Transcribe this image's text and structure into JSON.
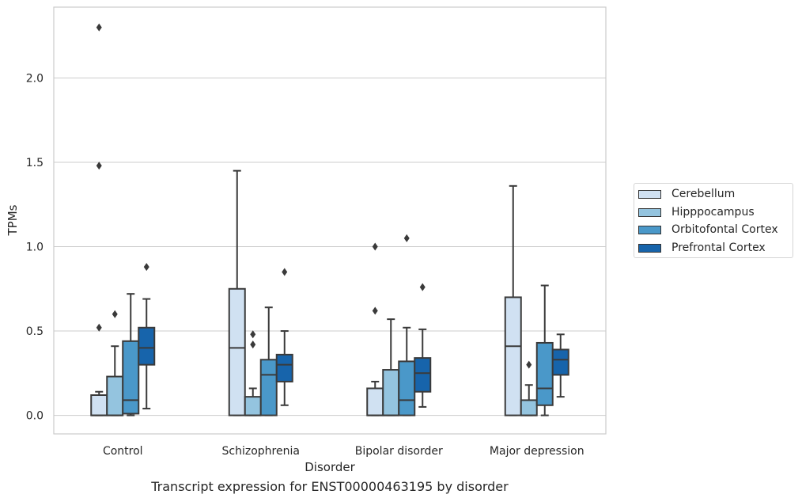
{
  "chart_data": {
    "type": "boxplot",
    "caption": "Transcript expression for ENST00000463195 by disorder",
    "xlabel": "Disorder",
    "ylabel": "TPMs",
    "ylim": [
      -0.11,
      2.42
    ],
    "yticks": [
      0.0,
      0.5,
      1.0,
      1.5,
      2.0
    ],
    "ytick_labels": [
      "0.0",
      "0.5",
      "1.0",
      "1.5",
      "2.0"
    ],
    "grid": "horizontal",
    "legend_position": "center-right, outside plot",
    "categories": [
      "Control",
      "Schizophrenia",
      "Bipolar disorder",
      "Major depression"
    ],
    "series": [
      {
        "name": "Cerebellum",
        "color": "#d0e1f2",
        "boxes": [
          {
            "whislo": 0.0,
            "q1": 0.0,
            "med": 0.0,
            "q3": 0.12,
            "whishi": 0.14,
            "fliers": [
              0.52,
              1.48,
              2.3
            ]
          },
          {
            "whislo": 0.0,
            "q1": 0.0,
            "med": 0.4,
            "q3": 0.75,
            "whishi": 1.45,
            "fliers": []
          },
          {
            "whislo": 0.0,
            "q1": 0.0,
            "med": 0.0,
            "q3": 0.16,
            "whishi": 0.2,
            "fliers": [
              0.62,
              1.0
            ]
          },
          {
            "whislo": 0.0,
            "q1": 0.0,
            "med": 0.41,
            "q3": 0.7,
            "whishi": 1.36,
            "fliers": []
          }
        ]
      },
      {
        "name": "Hipppocampus",
        "color": "#94c4df",
        "boxes": [
          {
            "whislo": 0.0,
            "q1": 0.0,
            "med": 0.0,
            "q3": 0.23,
            "whishi": 0.41,
            "fliers": [
              0.6
            ]
          },
          {
            "whislo": 0.0,
            "q1": 0.0,
            "med": 0.0,
            "q3": 0.11,
            "whishi": 0.16,
            "fliers": [
              0.42,
              0.48
            ]
          },
          {
            "whislo": 0.0,
            "q1": 0.0,
            "med": 0.0,
            "q3": 0.27,
            "whishi": 0.57,
            "fliers": []
          },
          {
            "whislo": 0.0,
            "q1": 0.0,
            "med": 0.0,
            "q3": 0.09,
            "whishi": 0.18,
            "fliers": [
              0.3
            ]
          }
        ]
      },
      {
        "name": "Orbitofontal Cortex",
        "color": "#4a98c9",
        "boxes": [
          {
            "whislo": 0.0,
            "q1": 0.01,
            "med": 0.09,
            "q3": 0.44,
            "whishi": 0.72,
            "fliers": []
          },
          {
            "whislo": 0.0,
            "q1": 0.0,
            "med": 0.24,
            "q3": 0.33,
            "whishi": 0.64,
            "fliers": []
          },
          {
            "whislo": 0.0,
            "q1": 0.0,
            "med": 0.09,
            "q3": 0.32,
            "whishi": 0.52,
            "fliers": [
              1.05
            ]
          },
          {
            "whislo": 0.0,
            "q1": 0.06,
            "med": 0.16,
            "q3": 0.43,
            "whishi": 0.77,
            "fliers": []
          }
        ]
      },
      {
        "name": "Prefrontal Cortex",
        "color": "#1764ab",
        "boxes": [
          {
            "whislo": 0.04,
            "q1": 0.3,
            "med": 0.4,
            "q3": 0.52,
            "whishi": 0.69,
            "fliers": [
              0.88
            ]
          },
          {
            "whislo": 0.06,
            "q1": 0.2,
            "med": 0.3,
            "q3": 0.36,
            "whishi": 0.5,
            "fliers": [
              0.85
            ]
          },
          {
            "whislo": 0.05,
            "q1": 0.14,
            "med": 0.25,
            "q3": 0.34,
            "whishi": 0.51,
            "fliers": [
              0.76
            ]
          },
          {
            "whislo": 0.11,
            "q1": 0.24,
            "med": 0.33,
            "q3": 0.39,
            "whishi": 0.48,
            "fliers": []
          }
        ]
      }
    ]
  }
}
